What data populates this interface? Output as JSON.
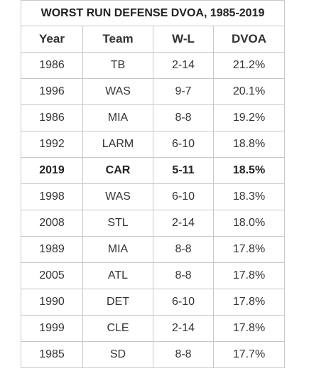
{
  "title": "WORST RUN DEFENSE DVOA, 1985-2019",
  "columns": [
    "Year",
    "Team",
    "W-L",
    "DVOA"
  ],
  "rows": [
    {
      "year": "1986",
      "team": "TB",
      "wl": "2-14",
      "dvoa": "21.2%",
      "highlight": false
    },
    {
      "year": "1996",
      "team": "WAS",
      "wl": "9-7",
      "dvoa": "20.1%",
      "highlight": false
    },
    {
      "year": "1986",
      "team": "MIA",
      "wl": "8-8",
      "dvoa": "19.2%",
      "highlight": false
    },
    {
      "year": "1992",
      "team": "LARM",
      "wl": "6-10",
      "dvoa": "18.8%",
      "highlight": false
    },
    {
      "year": "2019",
      "team": "CAR",
      "wl": "5-11",
      "dvoa": "18.5%",
      "highlight": true
    },
    {
      "year": "1998",
      "team": "WAS",
      "wl": "6-10",
      "dvoa": "18.3%",
      "highlight": false
    },
    {
      "year": "2008",
      "team": "STL",
      "wl": "2-14",
      "dvoa": "18.0%",
      "highlight": false
    },
    {
      "year": "1989",
      "team": "MIA",
      "wl": "8-8",
      "dvoa": "17.8%",
      "highlight": false
    },
    {
      "year": "2005",
      "team": "ATL",
      "wl": "8-8",
      "dvoa": "17.8%",
      "highlight": false
    },
    {
      "year": "1990",
      "team": "DET",
      "wl": "6-10",
      "dvoa": "17.8%",
      "highlight": false
    },
    {
      "year": "1999",
      "team": "CLE",
      "wl": "2-14",
      "dvoa": "17.8%",
      "highlight": false
    },
    {
      "year": "1985",
      "team": "SD",
      "wl": "8-8",
      "dvoa": "17.7%",
      "highlight": false
    }
  ]
}
